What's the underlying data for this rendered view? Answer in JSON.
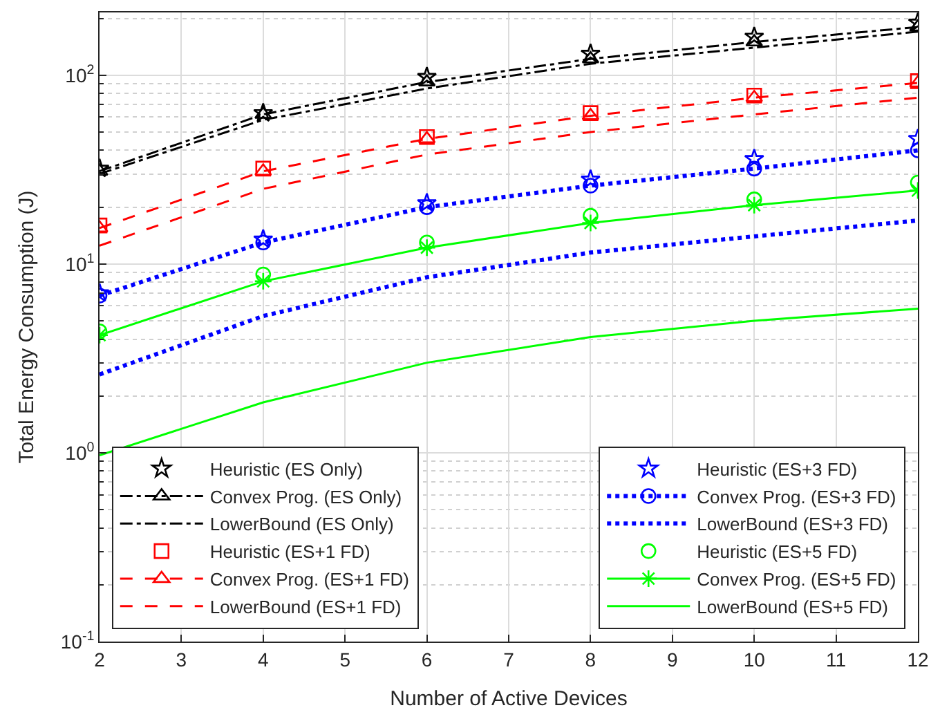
{
  "chart_data": {
    "type": "line",
    "xlabel": "Number of Active Devices",
    "ylabel": "Total Energy Consumption (J)",
    "x": [
      2,
      4,
      6,
      8,
      10,
      12
    ],
    "xlim": [
      2,
      12
    ],
    "xticks": [
      2,
      3,
      4,
      5,
      6,
      7,
      8,
      9,
      10,
      11,
      12
    ],
    "log": "y",
    "ylim": [
      0.1,
      215
    ],
    "yticks": [
      {
        "value": 0.1,
        "label": "10$^{-1}$"
      },
      {
        "value": 1,
        "label": "10$^{0}$"
      },
      {
        "value": 10,
        "label": "10$^{1}$"
      },
      {
        "value": 100,
        "label": "10$^{2}$"
      }
    ],
    "grid": true,
    "legend": "bottom",
    "series": [
      {
        "name": "Heuristic (ES Only)",
        "type": "scatter",
        "color": "#000000",
        "marker": "star",
        "values": [
          32,
          63,
          98,
          130,
          160,
          190
        ]
      },
      {
        "name": "Convex Prog. (ES Only)",
        "color": "#000000",
        "marker": "triangle",
        "line_style": "dashdot",
        "values": [
          31,
          62,
          92,
          122,
          150,
          180
        ]
      },
      {
        "name": "LowerBound (ES Only)",
        "color": "#000000",
        "marker": "none",
        "line_style": "dashdot",
        "values": [
          30,
          58,
          85,
          115,
          140,
          170
        ]
      },
      {
        "name": "Heuristic (ES+1 FD)",
        "type": "scatter",
        "color": "#ff0000",
        "marker": "square",
        "values": [
          16,
          32,
          47,
          63,
          78,
          93
        ]
      },
      {
        "name": "Convex Prog. (ES+1 FD)",
        "color": "#ff0000",
        "marker": "triangle",
        "line_style": "dashed",
        "values": [
          15.5,
          31,
          46,
          61,
          76,
          91
        ]
      },
      {
        "name": "LowerBound (ES+1 FD)",
        "color": "#ff0000",
        "marker": "none",
        "line_style": "dashed",
        "values": [
          12.5,
          25,
          38,
          50,
          62,
          76
        ]
      },
      {
        "name": "Heuristic (ES+3 FD)",
        "type": "scatter",
        "color": "#0000ff",
        "marker": "star",
        "values": [
          7,
          13.5,
          21,
          28,
          36,
          46
        ]
      },
      {
        "name": "Convex Prog. (ES+3 FD)",
        "color": "#0000ff",
        "marker": "circle",
        "line_style": "dotted",
        "values": [
          6.8,
          13,
          20,
          26,
          32,
          40
        ]
      },
      {
        "name": "LowerBound (ES+3 FD)",
        "color": "#0000ff",
        "marker": "none",
        "line_style": "dotted",
        "values": [
          2.6,
          5.3,
          8.5,
          11.5,
          14,
          17
        ]
      },
      {
        "name": "Heuristic (ES+5 FD)",
        "type": "scatter",
        "color": "#00ff00",
        "marker": "circle",
        "values": [
          4.4,
          8.8,
          13,
          18,
          22,
          27
        ]
      },
      {
        "name": "Convex Prog. (ES+5 FD)",
        "color": "#00ff00",
        "marker": "cross",
        "line_style": "solid",
        "values": [
          4.2,
          8.1,
          12.2,
          16.5,
          20.5,
          24.5
        ]
      },
      {
        "name": "LowerBound (ES+5 FD)",
        "color": "#00ff00",
        "marker": "none",
        "line_style": "solid",
        "values": [
          0.97,
          1.85,
          3,
          4.1,
          5,
          5.8
        ]
      }
    ]
  }
}
